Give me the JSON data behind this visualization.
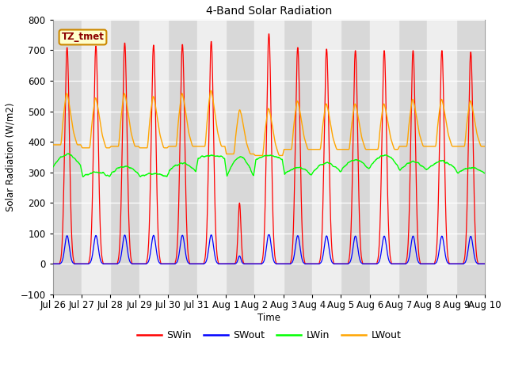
{
  "title": "4-Band Solar Radiation",
  "ylabel": "Solar Radiation (W/m2)",
  "xlabel": "Time",
  "ylim": [
    -100,
    800
  ],
  "yticks": [
    -100,
    0,
    100,
    200,
    300,
    400,
    500,
    600,
    700,
    800
  ],
  "legend_label": "TZ_tmet",
  "date_labels": [
    "Jul 26",
    "Jul 27",
    "Jul 28",
    "Jul 29",
    "Jul 30",
    "Jul 31",
    "Aug 1",
    "Aug 2",
    "Aug 3",
    "Aug 4",
    "Aug 5",
    "Aug 6",
    "Aug 7",
    "Aug 8",
    "Aug 9",
    "Aug 10"
  ],
  "colors": {
    "SWin": "#ff0000",
    "SWout": "#0000ff",
    "LWin": "#00ff00",
    "LWout": "#ffa500",
    "background": "#ffffff",
    "plot_bg": "#d8d8d8",
    "alt_bg": "#eeeeee",
    "grid": "#ffffff"
  },
  "n_days": 15,
  "pts_per_day": 96,
  "figsize": [
    6.4,
    4.8
  ],
  "dpi": 100
}
